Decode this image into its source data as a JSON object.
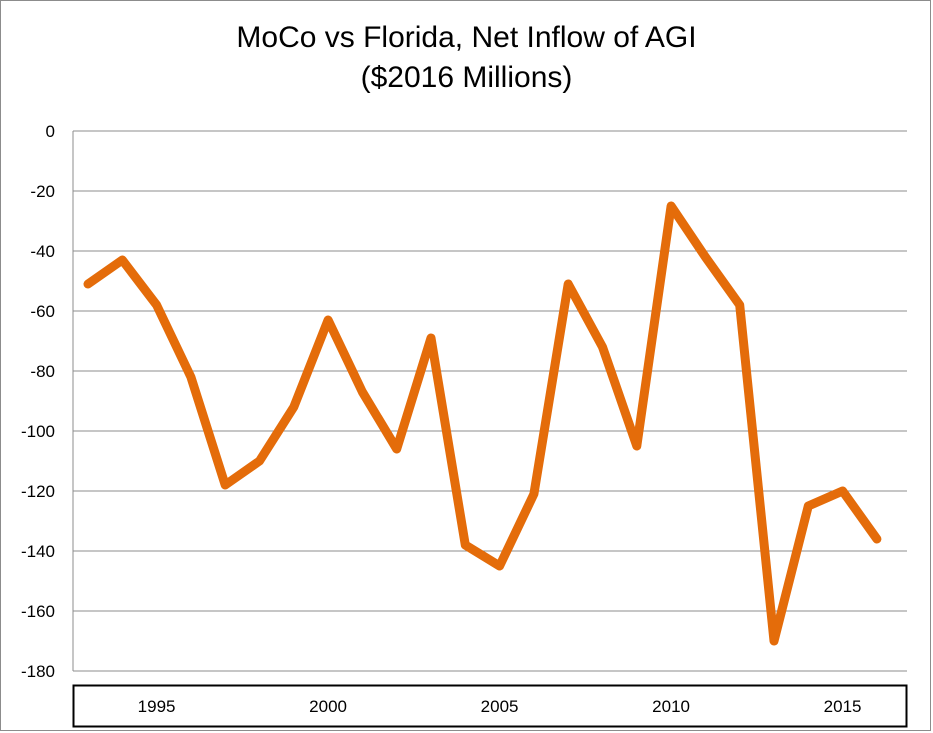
{
  "chart_data": {
    "type": "line",
    "title_line1": "MoCo vs Florida, Net Inflow of AGI",
    "title_line2": "($2016 Millions)",
    "xlabel": "",
    "ylabel": "",
    "ylim": [
      -180,
      0
    ],
    "yticks": [
      "0",
      "-20",
      "-40",
      "-60",
      "-80",
      "-100",
      "-120",
      "-140",
      "-160",
      "-180"
    ],
    "xticks": [
      "1995",
      "2000",
      "2005",
      "2010",
      "2015"
    ],
    "grid": true,
    "legend": "none",
    "series": [
      {
        "color": "#e46c0a",
        "x": [
          1993,
          1994,
          1995,
          1996,
          1997,
          1998,
          1999,
          2000,
          2001,
          2002,
          2003,
          2004,
          2005,
          2006,
          2007,
          2008,
          2009,
          2010,
          2011,
          2012,
          2013,
          2014,
          2015,
          2016
        ],
        "values": [
          -51,
          -43,
          -58,
          -82,
          -118,
          -110,
          -92,
          -63,
          -87,
          -106,
          -69,
          -138,
          -145,
          -121,
          -51,
          -72,
          -105,
          -25,
          -42,
          -58,
          -170,
          -125,
          -120,
          -136
        ]
      }
    ]
  }
}
